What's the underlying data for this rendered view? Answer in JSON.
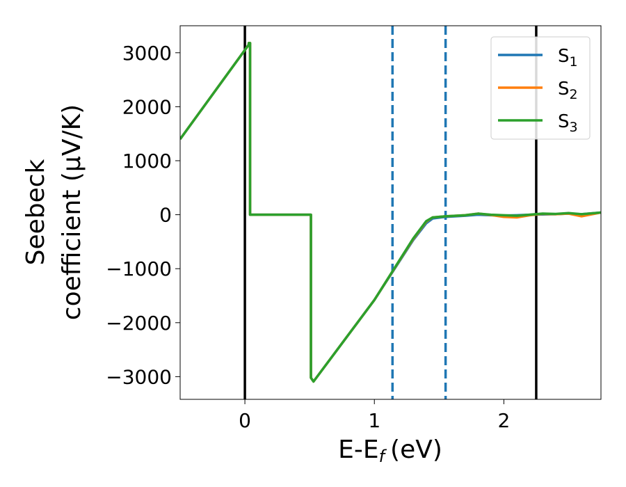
{
  "chart_data": {
    "type": "line",
    "xlabel": "E-E",
    "xlabel_sub": "f",
    "xlabel_unit": "(eV)",
    "ylabel_line1": "Seebeck",
    "ylabel_line2": "coefficient  (μV/K)",
    "xlim": [
      -0.5,
      2.75
    ],
    "ylim": [
      -3420,
      3500
    ],
    "xticks": [
      0,
      1,
      2
    ],
    "xtick_labels": [
      "0",
      "1",
      "2"
    ],
    "yticks": [
      3000,
      2000,
      1000,
      0,
      -1000,
      -2000,
      -3000
    ],
    "ytick_labels": [
      "3000",
      "2000",
      "1000",
      "0",
      "−1000",
      "−2000",
      "−3000"
    ],
    "grid": false,
    "legend_position": "top-right",
    "vlines": [
      {
        "x": 0.0,
        "style": "solid",
        "color": "#000000"
      },
      {
        "x": 1.14,
        "style": "dashed",
        "color": "#1f77b4"
      },
      {
        "x": 1.55,
        "style": "dashed",
        "color": "#1f77b4"
      },
      {
        "x": 2.25,
        "style": "solid",
        "color": "#000000"
      }
    ],
    "series": [
      {
        "name": "S",
        "sub": "1",
        "color": "#1f77b4",
        "x": [
          -0.5,
          0.03,
          0.03,
          0.04,
          0.04,
          0.51,
          0.51,
          0.53,
          1.0,
          1.3,
          1.4,
          1.45,
          1.55,
          1.7,
          1.8,
          1.9,
          2.0,
          2.1,
          2.2,
          2.3,
          2.4,
          2.5,
          2.6,
          2.75
        ],
        "values": [
          1400,
          3150,
          3180,
          3180,
          0,
          0,
          -3020,
          -3090,
          -1580,
          -470,
          -160,
          -70,
          -40,
          -20,
          0,
          -10,
          -15,
          -10,
          0,
          5,
          10,
          20,
          10,
          40
        ]
      },
      {
        "name": "S",
        "sub": "2",
        "color": "#ff7f0e",
        "x": [
          -0.5,
          0.03,
          0.03,
          0.04,
          0.04,
          0.51,
          0.51,
          0.53,
          1.0,
          1.3,
          1.4,
          1.45,
          1.55,
          1.7,
          1.8,
          1.9,
          2.0,
          2.1,
          2.2,
          2.3,
          2.4,
          2.5,
          2.6,
          2.75
        ],
        "values": [
          1400,
          3150,
          3180,
          3180,
          0,
          0,
          -3020,
          -3090,
          -1580,
          -450,
          -130,
          -50,
          -30,
          -10,
          20,
          -5,
          -40,
          -50,
          -10,
          15,
          10,
          20,
          -30,
          40
        ]
      },
      {
        "name": "S",
        "sub": "3",
        "color": "#2ca02c",
        "x": [
          -0.5,
          0.03,
          0.03,
          0.04,
          0.04,
          0.51,
          0.51,
          0.53,
          1.0,
          1.3,
          1.4,
          1.45,
          1.55,
          1.7,
          1.8,
          1.9,
          2.0,
          2.1,
          2.2,
          2.3,
          2.4,
          2.5,
          2.6,
          2.75
        ],
        "values": [
          1400,
          3150,
          3180,
          3180,
          0,
          0,
          -3020,
          -3090,
          -1580,
          -440,
          -120,
          -50,
          -30,
          -10,
          20,
          0,
          -10,
          -20,
          0,
          20,
          15,
          30,
          10,
          40
        ]
      }
    ]
  }
}
